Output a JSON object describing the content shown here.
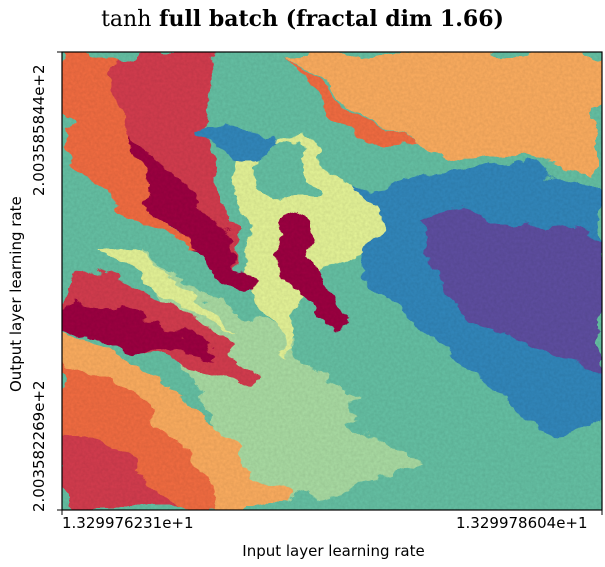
{
  "chart_data": {
    "type": "heatmap",
    "title_code": "tanh",
    "title_rest": "full batch (fractal dim 1.66)",
    "xlabel": "Input layer learning rate",
    "ylabel": "Output layer learning rate",
    "x_ticks": [
      "1.329976231e+1",
      "1.329978604e+1"
    ],
    "y_ticks": [
      "2.003582269e+2",
      "2.003585844e+2"
    ],
    "xlim": [
      13.29976231,
      13.29978604
    ],
    "ylim": [
      200.3582269,
      200.3585844
    ],
    "fractal_dimension": 1.66,
    "colormap": "Spectral",
    "colors": [
      "#9e0142",
      "#d53e4f",
      "#f46d43",
      "#fdae61",
      "#fee08b",
      "#e6f598",
      "#abdda4",
      "#66c2a5",
      "#3288bd",
      "#5e4fa2"
    ]
  }
}
